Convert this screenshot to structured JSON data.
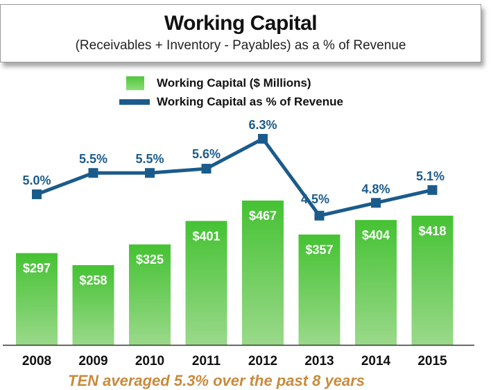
{
  "header": {
    "title": "Working Capital",
    "subtitle": "(Receivables + Inventory - Payables) as a % of Revenue"
  },
  "footer": {
    "note": "TEN averaged 5.3% over the past 8 years"
  },
  "colors": {
    "bar_top": "#45c233",
    "bar_bottom": "#9ad98a",
    "line": "#1b5b8c",
    "pct_label": "#1b5b8c",
    "footer": "#c98a3c"
  },
  "chart_data": {
    "type": "bar",
    "title": "Working Capital",
    "subtitle": "(Receivables + Inventory - Payables) as a % of Revenue",
    "categories": [
      "2008",
      "2009",
      "2010",
      "2011",
      "2012",
      "2013",
      "2014",
      "2015"
    ],
    "series": [
      {
        "name": "Working Capital ($ Millions)",
        "type": "bar",
        "values": [
          297,
          258,
          325,
          401,
          467,
          357,
          404,
          418
        ],
        "labels": [
          "$297",
          "$258",
          "$325",
          "$401",
          "$467",
          "$357",
          "$404",
          "$418"
        ]
      },
      {
        "name": "Working Capital as % of Revenue",
        "type": "line",
        "values": [
          5.0,
          5.5,
          5.5,
          5.6,
          6.3,
          4.5,
          4.8,
          5.1
        ],
        "labels": [
          "5.0%",
          "5.5%",
          "5.5%",
          "5.6%",
          "6.3%",
          "4.5%",
          "4.8%",
          "5.1%"
        ]
      }
    ],
    "grid": false,
    "legend": "top-center"
  }
}
